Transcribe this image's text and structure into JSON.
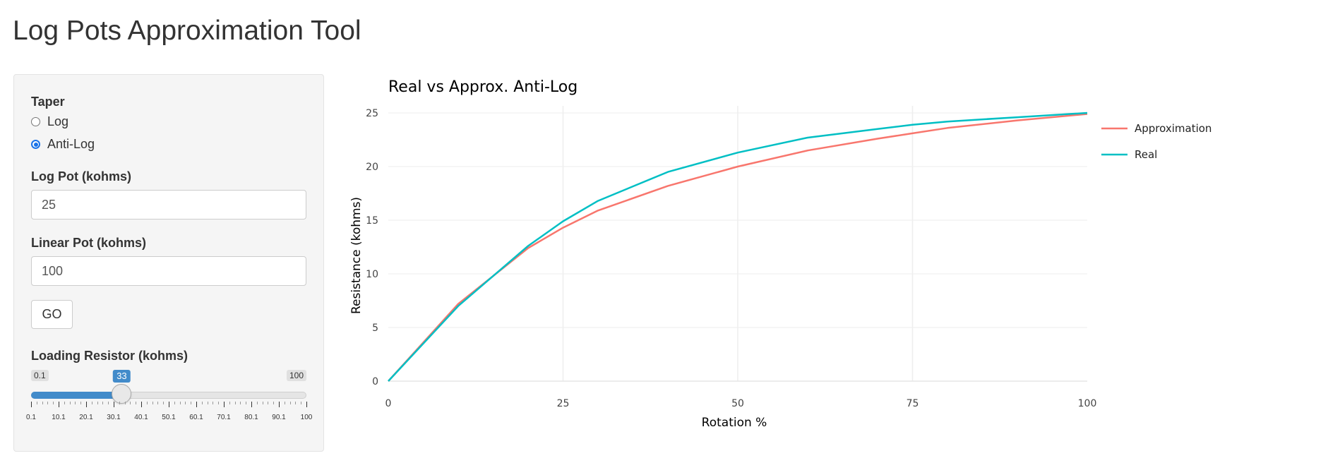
{
  "app": {
    "title": "Log Pots Approximation Tool"
  },
  "sidebar": {
    "taper": {
      "label": "Taper",
      "options": [
        {
          "label": "Log",
          "checked": false
        },
        {
          "label": "Anti-Log",
          "checked": true
        }
      ]
    },
    "log_pot": {
      "label": "Log Pot (kohms)",
      "value": "25"
    },
    "linear_pot": {
      "label": "Linear Pot (kohms)",
      "value": "100"
    },
    "go_label": "GO",
    "loading_resistor": {
      "label": "Loading Resistor (kohms)",
      "min_label": "0.1",
      "max_label": "100",
      "value_label": "33",
      "min": 0.1,
      "max": 100,
      "value": 33,
      "tick_labels": [
        "0.1",
        "10.1",
        "20.1",
        "30.1",
        "40.1",
        "50.1",
        "60.1",
        "70.1",
        "80.1",
        "90.1",
        "100"
      ]
    }
  },
  "colors": {
    "approximation": "#F8766D",
    "real": "#00BFC4",
    "slider_accent": "#428bca"
  },
  "chart_data": {
    "type": "line",
    "title": "Real vs Approx. Anti-Log",
    "xlabel": "Rotation %",
    "ylabel": "Resistance (kohms)",
    "xlim": [
      0,
      100
    ],
    "ylim": [
      0,
      25
    ],
    "xticks": [
      "0",
      "25",
      "50",
      "75",
      "100"
    ],
    "yticks": [
      "0",
      "5",
      "10",
      "15",
      "20",
      "25"
    ],
    "grid": true,
    "legend_position": "right",
    "x": [
      0,
      10,
      20,
      25,
      30,
      40,
      50,
      60,
      70,
      75,
      80,
      90,
      100
    ],
    "series": [
      {
        "name": "Approximation",
        "values": [
          0,
          7.2,
          12.4,
          14.3,
          15.9,
          18.2,
          20.0,
          21.5,
          22.6,
          23.1,
          23.6,
          24.3,
          24.9
        ]
      },
      {
        "name": "Real",
        "values": [
          0,
          7.0,
          12.6,
          14.9,
          16.8,
          19.5,
          21.3,
          22.7,
          23.5,
          23.9,
          24.2,
          24.6,
          25.0
        ]
      }
    ]
  }
}
